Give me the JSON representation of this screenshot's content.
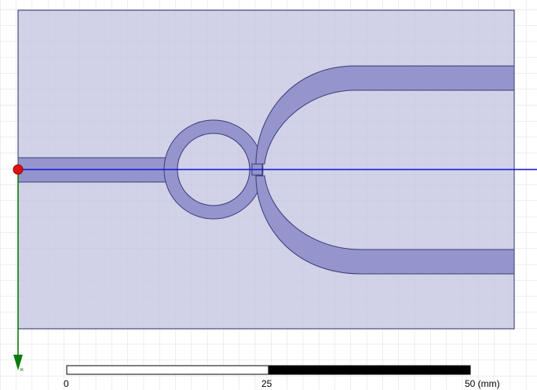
{
  "colors": {
    "background": "#ffffff",
    "grid_line": "#dcdcdc",
    "substrate_fill": "#d4d4e6",
    "substrate_stroke": "#2e2e6e",
    "trace_fill": "#9495cc",
    "trace_stroke": "#3a3a7a",
    "x_axis": "#1414d6",
    "y_axis": "#0a7a0a",
    "origin_marker": "#dd1111"
  },
  "icons": {
    "origin": "origin-marker-icon",
    "y_axis_arrow": "arrow-down-icon"
  },
  "scale_bar": {
    "labels": [
      "0",
      "25",
      "50 (mm)"
    ],
    "unit": "mm"
  }
}
